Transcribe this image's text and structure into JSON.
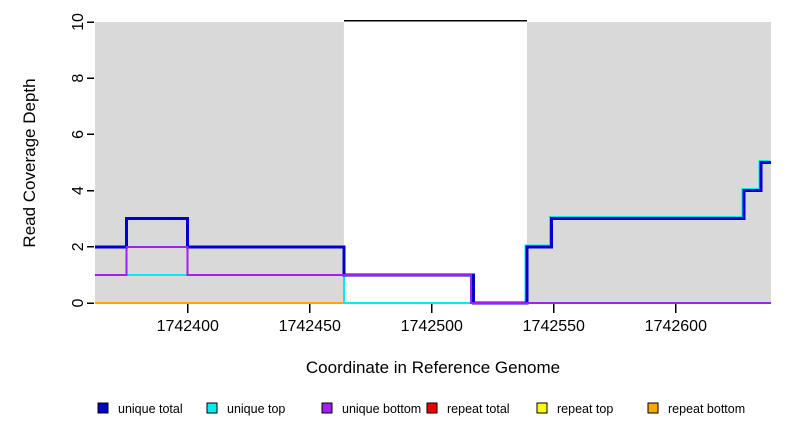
{
  "page": {
    "background": "#FFFFFF"
  },
  "chart_data": {
    "type": "line",
    "subtype": "step-coverage",
    "title": "",
    "xlabel": "Coordinate in Reference Genome",
    "ylabel": "Read Coverage Depth",
    "xlim": [
      1742362,
      1742639
    ],
    "ylim": [
      0,
      10
    ],
    "grid": false,
    "x_ticks": {
      "values": [
        1742400,
        1742450,
        1742500,
        1742550,
        1742600
      ],
      "labels": [
        "1742400",
        "1742450",
        "1742500",
        "1742550",
        "1742600"
      ]
    },
    "y_ticks": {
      "values": [
        0,
        2,
        4,
        6,
        8,
        10
      ],
      "labels": [
        "0",
        "2",
        "4",
        "6",
        "8",
        "10"
      ]
    },
    "shaded_regions": [
      {
        "name": "unique-region-left",
        "x0": 1742362,
        "x1": 1742464,
        "color": "#D9D9D9"
      },
      {
        "name": "unique-region-right",
        "x0": 1742539,
        "x1": 1742639,
        "color": "#D9D9D9"
      }
    ],
    "offscale_line": {
      "x0": 1742464,
      "x1": 1742539,
      "y": 10,
      "color": "#000000"
    },
    "series": [
      {
        "name": "repeat total",
        "color": "#EE0000",
        "width": 2,
        "segments": []
      },
      {
        "name": "repeat top",
        "color": "#FFFF00",
        "width": 2,
        "segments": []
      },
      {
        "name": "repeat bottom",
        "color": "#FFA500",
        "width": 2,
        "segments": [
          [
            [
              1742362,
              0
            ],
            [
              1742464,
              0
            ]
          ]
        ]
      },
      {
        "name": "unique top",
        "color": "#00EEEE",
        "width": 2,
        "segments": [
          [
            [
              1742362,
              1
            ],
            [
              1742464,
              1
            ],
            [
              1742464,
              0
            ],
            [
              1742516,
              0
            ]
          ],
          [
            [
              1742539,
              0
            ],
            [
              1742539,
              2
            ],
            [
              1742549,
              2
            ],
            [
              1742549,
              3
            ],
            [
              1742628,
              3
            ],
            [
              1742628,
              4
            ],
            [
              1742635,
              4
            ],
            [
              1742635,
              5
            ],
            [
              1742639,
              5
            ]
          ]
        ]
      },
      {
        "name": "unique total",
        "color": "#0000CC",
        "width": 3,
        "segments": [
          [
            [
              1742362,
              2
            ],
            [
              1742375,
              2
            ],
            [
              1742375,
              3
            ],
            [
              1742400,
              3
            ],
            [
              1742400,
              2
            ],
            [
              1742464,
              2
            ],
            [
              1742464,
              1
            ],
            [
              1742517,
              1
            ],
            [
              1742517,
              0
            ],
            [
              1742539,
              0
            ],
            [
              1742539,
              2
            ],
            [
              1742549,
              2
            ],
            [
              1742549,
              3
            ],
            [
              1742628,
              3
            ],
            [
              1742628,
              4
            ],
            [
              1742635,
              4
            ],
            [
              1742635,
              5
            ],
            [
              1742639,
              5
            ]
          ]
        ]
      },
      {
        "name": "unique bottom",
        "color": "#A020F0",
        "width": 2,
        "segments": [
          [
            [
              1742362,
              1
            ],
            [
              1742375,
              1
            ],
            [
              1742375,
              2
            ],
            [
              1742400,
              2
            ],
            [
              1742400,
              1
            ],
            [
              1742516,
              1
            ],
            [
              1742516,
              0
            ],
            [
              1742639,
              0
            ]
          ]
        ]
      }
    ],
    "legend": {
      "position": "bottom",
      "items": [
        {
          "label": "unique total",
          "color": "#0000CC"
        },
        {
          "label": "unique top",
          "color": "#00EEEE"
        },
        {
          "label": "unique bottom",
          "color": "#A020F0"
        },
        {
          "label": "repeat total",
          "color": "#EE0000"
        },
        {
          "label": "repeat top",
          "color": "#FFFF00"
        },
        {
          "label": "repeat bottom",
          "color": "#FFA500"
        }
      ]
    }
  }
}
